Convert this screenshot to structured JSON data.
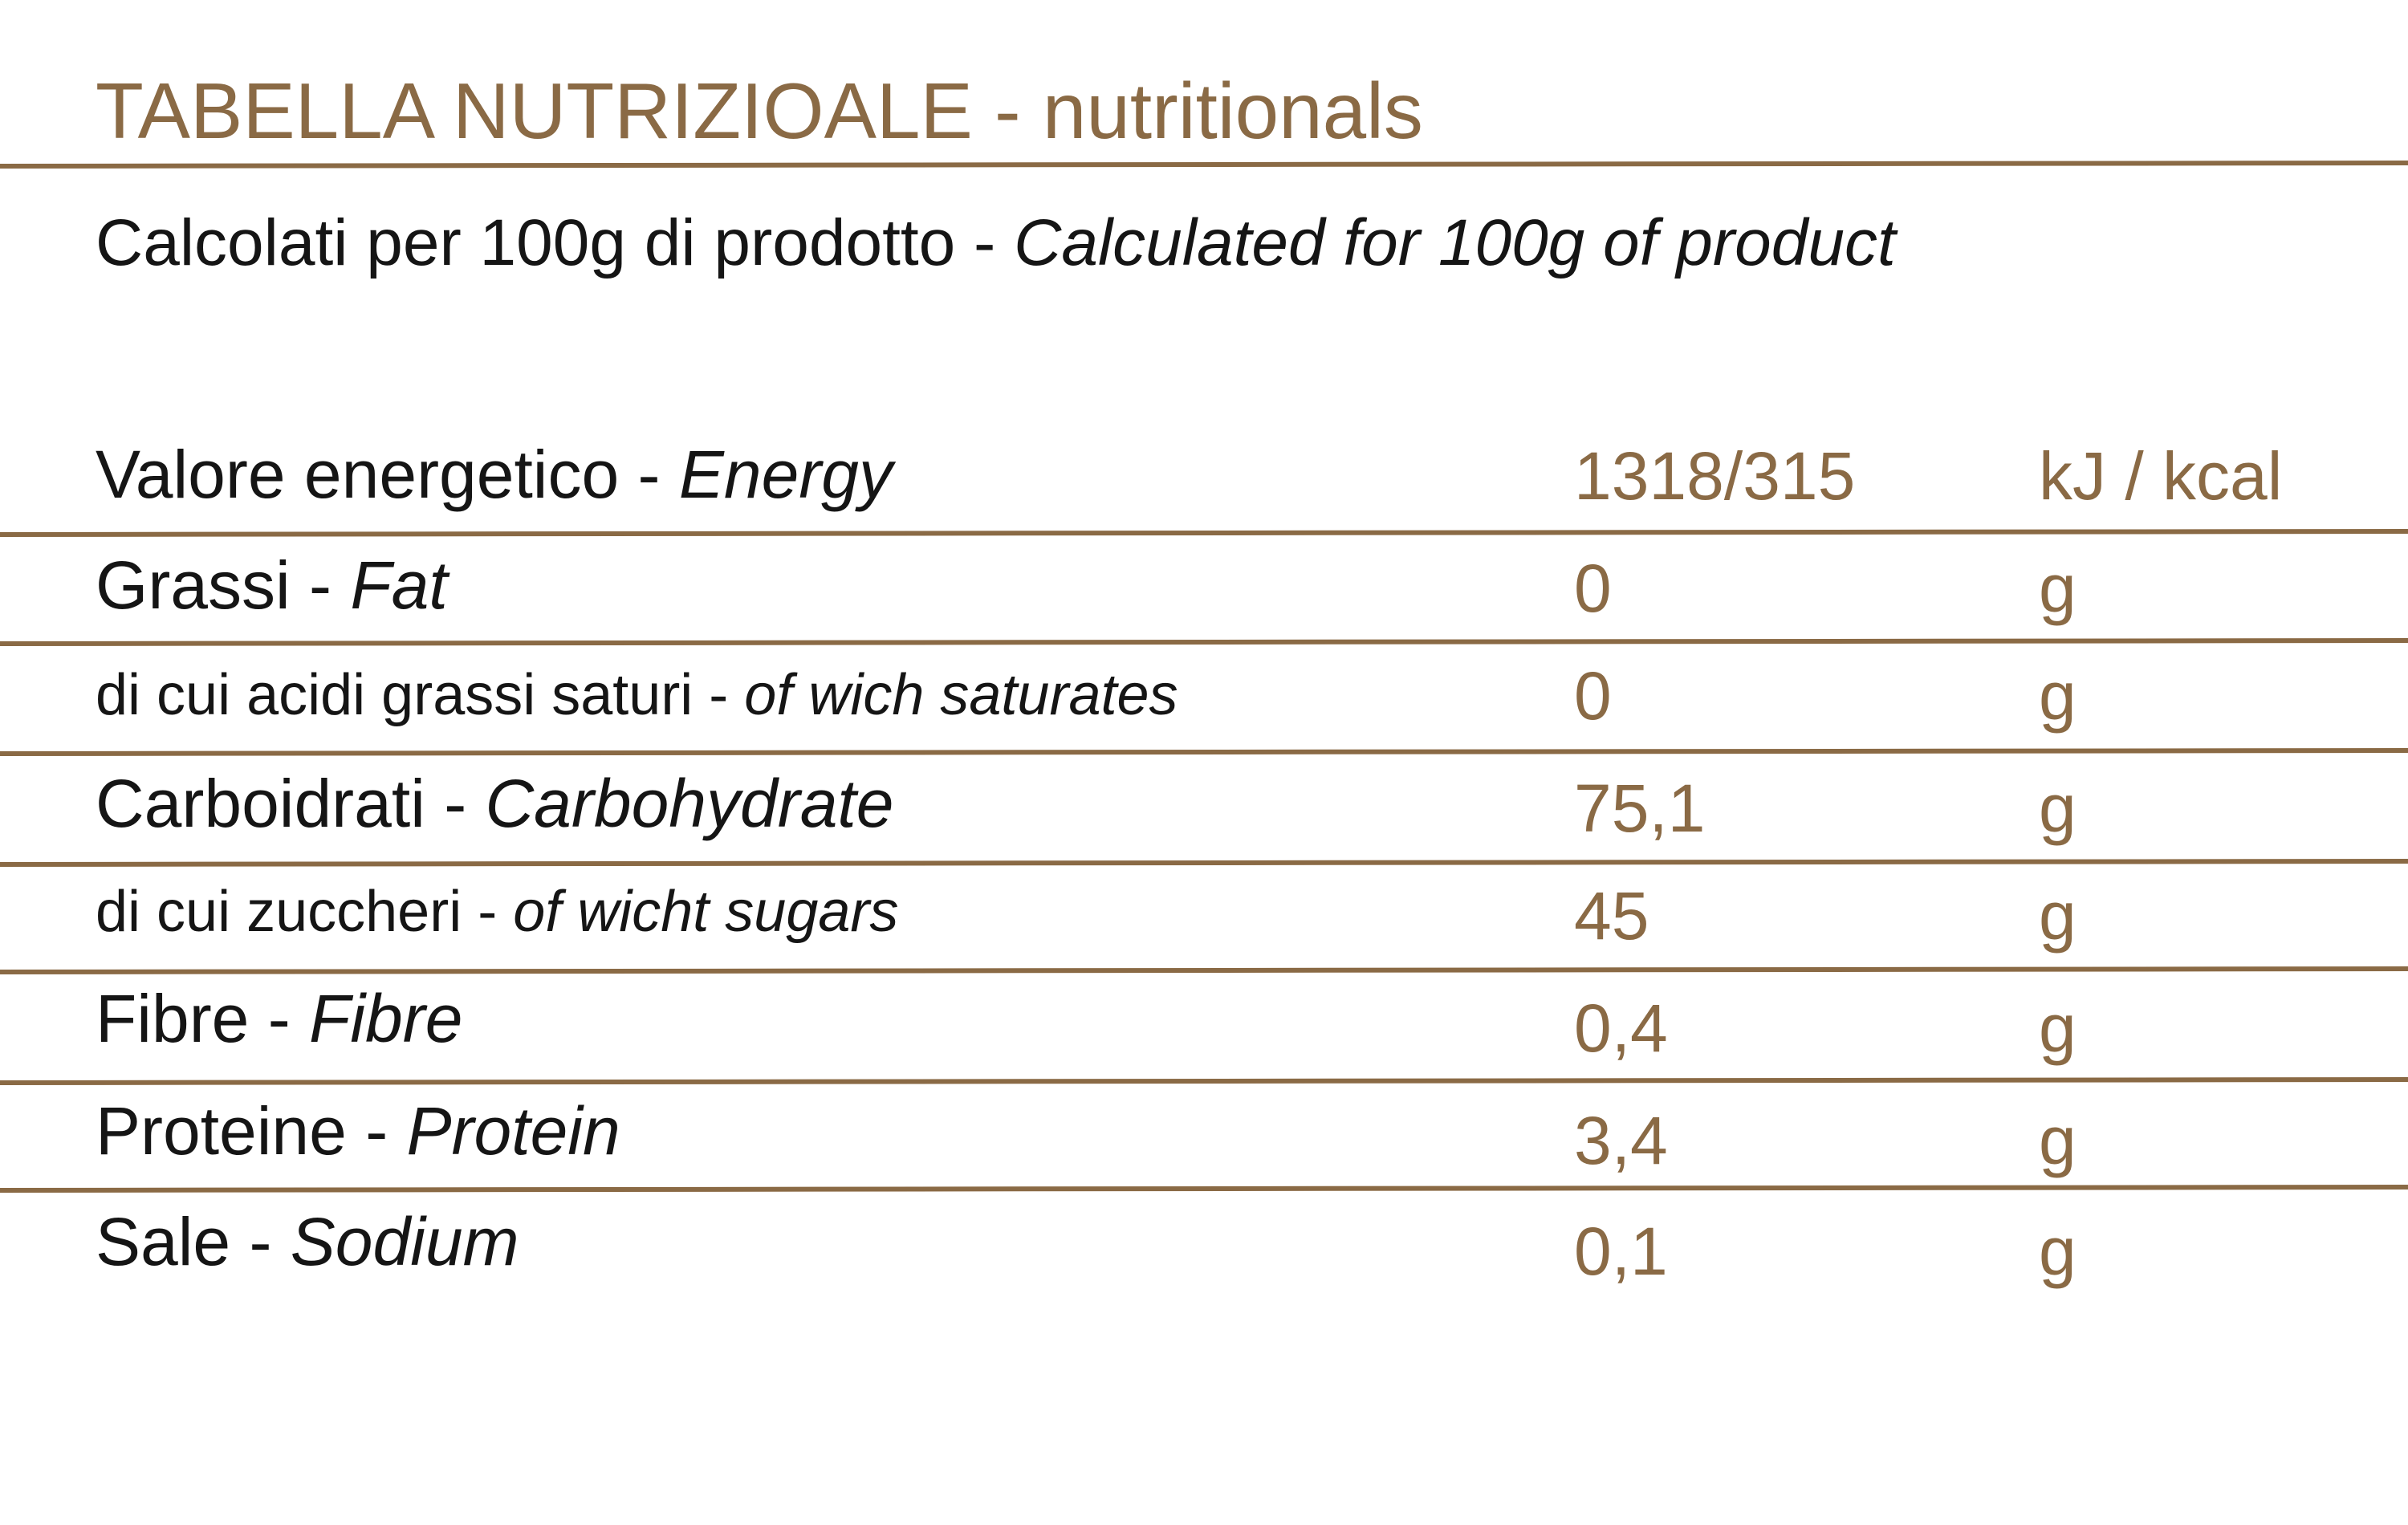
{
  "header": {
    "title": "TABELLA NUTRIZIOALE - nutritionals",
    "subtitle": {
      "italian": "Calcolati per 100g di prodotto -",
      "english": "Calculated for 100g of product"
    }
  },
  "table": {
    "rows": [
      {
        "label": "Valore energetico -",
        "label_en": "Energy",
        "value": "1318/315",
        "unit": "kJ / kcal"
      },
      {
        "label": "Grassi -",
        "label_en": "Fat",
        "value": "0",
        "unit": "g"
      },
      {
        "label": "di cui acidi grassi saturi -",
        "label_en": "of wich saturates",
        "value": "0",
        "unit": "g"
      },
      {
        "label": "Carboidrati -",
        "label_en": "Carbohydrate",
        "value": "75,1",
        "unit": "g"
      },
      {
        "label": "di cui zuccheri -",
        "label_en": "of wicht sugars",
        "value": "45",
        "unit": "g"
      },
      {
        "label": "Fibre -",
        "label_en": "Fibre",
        "value": "0,4",
        "unit": "g"
      },
      {
        "label": "Proteine -",
        "label_en": "Protein",
        "value": "3,4",
        "unit": "g"
      },
      {
        "label": "Sale -",
        "label_en": "Sodium",
        "value": "0,1",
        "unit": "g"
      }
    ]
  }
}
